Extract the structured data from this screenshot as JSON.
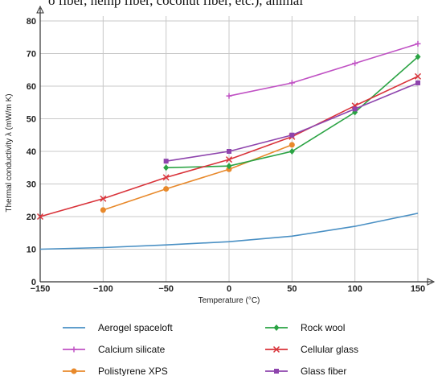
{
  "page": {
    "top_text": "o fiber, hemp fiber, coconut fiber, etc.), animal"
  },
  "chart_data": {
    "type": "line",
    "title": "",
    "xlabel": "Temperature (°C)",
    "ylabel": "Thermal conductivity λ (mW/m K)",
    "xlim": [
      -150,
      150
    ],
    "ylim": [
      0,
      80
    ],
    "xticks": [
      -150,
      -100,
      -50,
      0,
      50,
      100,
      150
    ],
    "yticks": [
      0,
      10,
      20,
      30,
      40,
      50,
      60,
      70,
      80
    ],
    "grid": true,
    "legend_position": "bottom",
    "series": [
      {
        "name": "Aerogel spaceloft",
        "color": "#4a90c4",
        "marker": "none",
        "x": [
          -150,
          -100,
          -50,
          0,
          50,
          100,
          150
        ],
        "y": [
          10,
          10.5,
          11.3,
          12.3,
          14,
          17,
          21
        ]
      },
      {
        "name": "Calcium silicate",
        "color": "#c052c4",
        "marker": "plus",
        "x": [
          0,
          50,
          100,
          150
        ],
        "y": [
          57,
          61,
          67,
          73
        ]
      },
      {
        "name": "Polistyrene XPS",
        "color": "#e8892b",
        "marker": "circle",
        "x": [
          -100,
          -50,
          0,
          50
        ],
        "y": [
          22,
          28.5,
          34.5,
          42
        ]
      },
      {
        "name": "Rock wool",
        "color": "#2aa343",
        "marker": "diamond",
        "x": [
          -50,
          0,
          50,
          100,
          150
        ],
        "y": [
          35,
          35.5,
          40,
          52,
          69
        ]
      },
      {
        "name": "Cellular glass",
        "color": "#d9333a",
        "marker": "x",
        "x": [
          -150,
          -100,
          -50,
          0,
          50,
          100,
          150
        ],
        "y": [
          20,
          25.5,
          32,
          37.5,
          44.5,
          54,
          63
        ]
      },
      {
        "name": "Glass fiber",
        "color": "#8e44ad",
        "marker": "square",
        "x": [
          -50,
          0,
          50,
          100,
          150
        ],
        "y": [
          37,
          40,
          45,
          53,
          61
        ]
      }
    ]
  }
}
